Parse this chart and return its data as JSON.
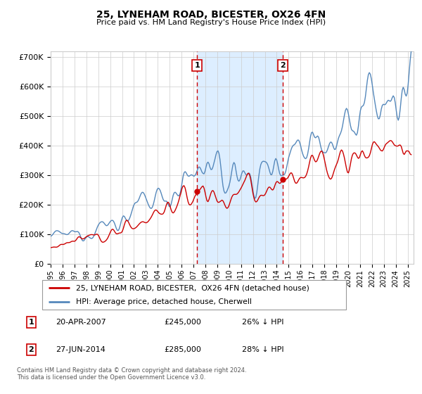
{
  "title": "25, LYNEHAM ROAD, BICESTER, OX26 4FN",
  "subtitle": "Price paid vs. HM Land Registry's House Price Index (HPI)",
  "legend_line1": "25, LYNEHAM ROAD, BICESTER,  OX26 4FN (detached house)",
  "legend_line2": "HPI: Average price, detached house, Cherwell",
  "annotation1_date": "20-APR-2007",
  "annotation1_price": "£245,000",
  "annotation1_note": "26% ↓ HPI",
  "annotation2_date": "27-JUN-2014",
  "annotation2_price": "£285,000",
  "annotation2_note": "28% ↓ HPI",
  "footer": "Contains HM Land Registry data © Crown copyright and database right 2024.\nThis data is licensed under the Open Government Licence v3.0.",
  "red_color": "#cc0000",
  "blue_color": "#5588bb",
  "shade_color": "#ddeeff",
  "grid_color": "#cccccc",
  "background_color": "#ffffff",
  "ylim": [
    0,
    720000
  ],
  "xstart_year": 1995,
  "xend_year": 2025,
  "marker1_year": 2007.3,
  "marker1_value": 245000,
  "marker2_year": 2014.5,
  "marker2_value": 285000,
  "vline1_year": 2007.3,
  "vline2_year": 2014.5
}
